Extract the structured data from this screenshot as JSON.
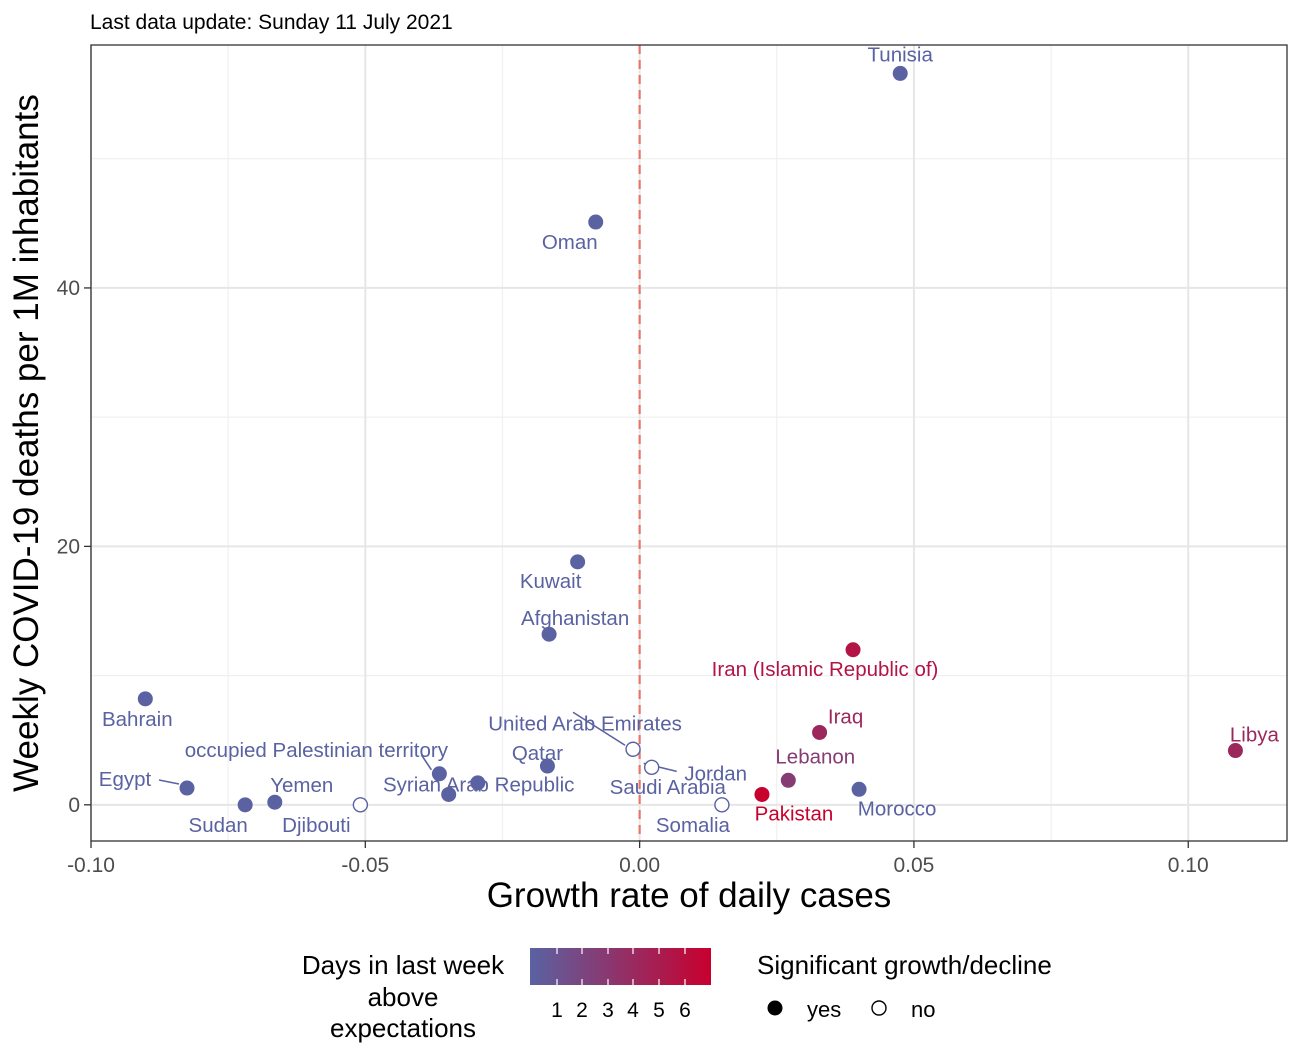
{
  "subtitle": "Last data update: Sunday 11 July 2021",
  "chart_data": {
    "type": "scatter",
    "title": "",
    "subtitle": "Last data update: Sunday 11 July 2021",
    "xlabel": "Growth rate of daily cases",
    "ylabel": "Weekly COVID-19 deaths per 1M inhabitants",
    "xlim": [
      -0.1,
      0.118
    ],
    "ylim": [
      -2.8,
      58.8
    ],
    "x_ticks": [
      -0.1,
      -0.05,
      0.0,
      0.05,
      0.1
    ],
    "x_tick_labels": [
      "-0.10",
      "-0.05",
      "0.00",
      "0.05",
      "0.10"
    ],
    "y_ticks": [
      0,
      20,
      40
    ],
    "y_tick_labels": [
      "0",
      "20",
      "40"
    ],
    "grid": true,
    "reference_line": {
      "x": 0.0,
      "style": "dashed",
      "color": "#e8776b"
    },
    "points": [
      {
        "label": "Tunisia",
        "x": 0.0475,
        "y": 56.6,
        "days": 1,
        "significant": true
      },
      {
        "label": "Oman",
        "x": -0.008,
        "y": 45.1,
        "days": 1,
        "significant": true
      },
      {
        "label": "Kuwait",
        "x": -0.0113,
        "y": 18.8,
        "days": 1,
        "significant": true
      },
      {
        "label": "Afghanistan",
        "x": -0.0165,
        "y": 13.2,
        "days": 1,
        "significant": true
      },
      {
        "label": "Iran (Islamic Republic of)",
        "x": 0.0389,
        "y": 12.0,
        "days": 5,
        "significant": true
      },
      {
        "label": "Bahrain",
        "x": -0.0901,
        "y": 8.2,
        "days": 1,
        "significant": true
      },
      {
        "label": "Iraq",
        "x": 0.0328,
        "y": 5.6,
        "days": 4,
        "significant": true
      },
      {
        "label": "Libya",
        "x": 0.1086,
        "y": 4.2,
        "days": 4,
        "significant": true
      },
      {
        "label": "United Arab Emirates",
        "x": -0.0012,
        "y": 4.3,
        "days": 1,
        "significant": false
      },
      {
        "label": "Jordan",
        "x": 0.0022,
        "y": 2.9,
        "days": 1,
        "significant": false
      },
      {
        "label": "Qatar",
        "x": -0.0168,
        "y": 3.0,
        "days": 1,
        "significant": true
      },
      {
        "label": "occupied Palestinian territory",
        "x": -0.0365,
        "y": 2.4,
        "days": 1,
        "significant": true
      },
      {
        "label": "Lebanon",
        "x": 0.0271,
        "y": 1.9,
        "days": 3,
        "significant": true
      },
      {
        "label": "Egypt",
        "x": -0.0825,
        "y": 1.3,
        "days": 1,
        "significant": true
      },
      {
        "label": "Morocco",
        "x": 0.04,
        "y": 1.2,
        "days": 1,
        "significant": true
      },
      {
        "label": "Pakistan",
        "x": 0.0223,
        "y": 0.8,
        "days": 6,
        "significant": true
      },
      {
        "label": "Saudi Arabia",
        "x": -0.0295,
        "y": 1.7,
        "days": 1,
        "significant": true
      },
      {
        "label": "Syrian Arab Republic",
        "x": -0.0348,
        "y": 0.8,
        "days": 1,
        "significant": true
      },
      {
        "label": "Yemen",
        "x": -0.0665,
        "y": 0.2,
        "days": 1,
        "significant": true
      },
      {
        "label": "Sudan",
        "x": -0.0719,
        "y": 0.0,
        "days": 1,
        "significant": true
      },
      {
        "label": "Djibouti",
        "x": -0.0509,
        "y": 0.0,
        "days": 1,
        "significant": false
      },
      {
        "label": "Somalia",
        "x": 0.015,
        "y": 0.0,
        "days": 1,
        "significant": false
      }
    ],
    "legend": {
      "placement": "bottom",
      "color": {
        "title": "Days in last week above expectations",
        "title_lines": [
          "Days in last week",
          "above",
          "expectations"
        ],
        "labels": [
          "1",
          "2",
          "3",
          "4",
          "5",
          "6"
        ],
        "low_color": "#5a62a2",
        "high_color": "#c8002e"
      },
      "shape": {
        "title": "Significant growth/decline",
        "items": [
          {
            "label": "yes",
            "filled": true
          },
          {
            "label": "no",
            "filled": false
          }
        ]
      }
    }
  }
}
